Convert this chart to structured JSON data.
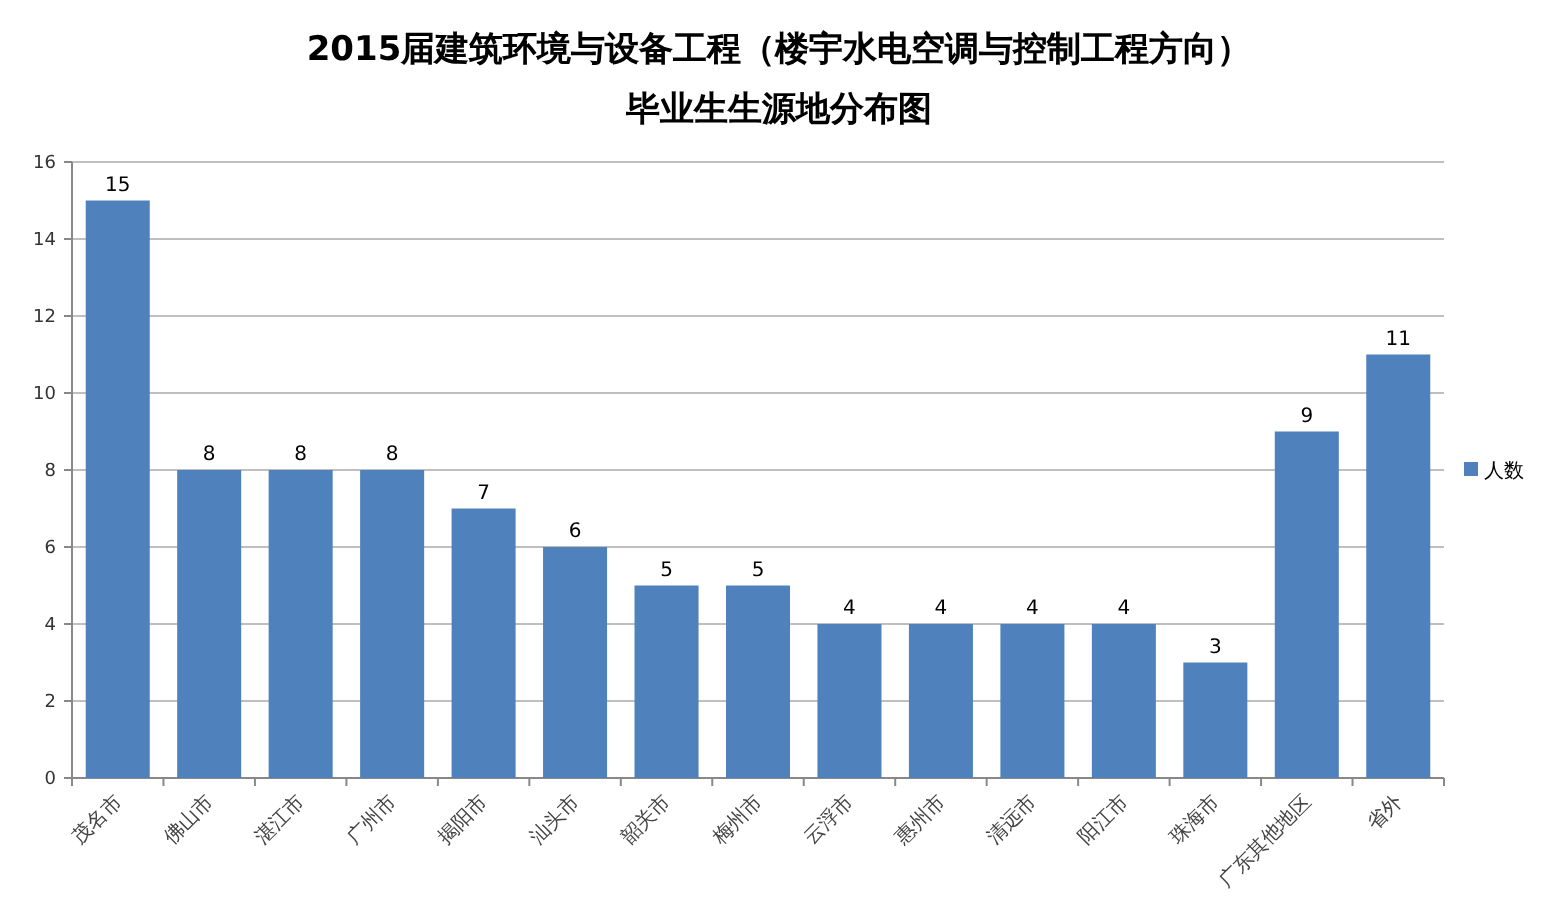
{
  "chart_data": {
    "type": "bar",
    "title": "2015届建筑环境与设备工程（楼宇水电空调与控制工程方向）",
    "subtitle": "毕业生生源地分布图",
    "categories": [
      "茂名市",
      "佛山市",
      "湛江市",
      "广州市",
      "揭阳市",
      "汕头市",
      "韶关市",
      "梅州市",
      "云浮市",
      "惠州市",
      "清远市",
      "阳江市",
      "珠海市",
      "广东其他地区",
      "省外"
    ],
    "series": [
      {
        "name": "人数",
        "color": "#4f81bd",
        "values": [
          15,
          8,
          8,
          8,
          7,
          6,
          5,
          5,
          4,
          4,
          4,
          4,
          3,
          9,
          11
        ]
      }
    ],
    "ylim": [
      0,
      16
    ],
    "yticks": [
      0,
      2,
      4,
      6,
      8,
      10,
      12,
      14,
      16
    ],
    "grid": "y",
    "data_labels": true,
    "legend": "right"
  }
}
